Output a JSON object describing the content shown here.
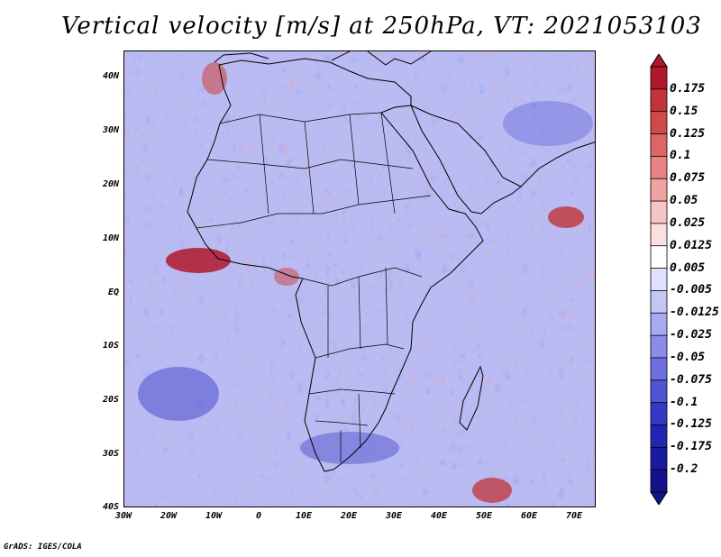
{
  "title": "Vertical velocity [m/s] at 250hPa, VT: 2021053103",
  "credit": "GrADS: IGES/COLA",
  "map": {
    "region": "Africa and surrounding oceans",
    "lon_range": [
      -30,
      75
    ],
    "lat_range": [
      -40,
      45
    ],
    "lat_labels": [
      "40N",
      "30N",
      "20N",
      "10N",
      "EQ",
      "10S",
      "20S",
      "30S",
      "40S"
    ],
    "lon_labels": [
      "30W",
      "20W",
      "10W",
      "0",
      "10E",
      "20E",
      "30E",
      "40E",
      "50E",
      "60E",
      "70E"
    ]
  },
  "colorbar": {
    "labels": [
      "0.175",
      "0.15",
      "0.125",
      "0.1",
      "0.075",
      "0.05",
      "0.025",
      "0.0125",
      "0.005",
      "-0.005",
      "-0.0125",
      "-0.025",
      "-0.05",
      "-0.075",
      "-0.1",
      "-0.125",
      "-0.175",
      "-0.2"
    ],
    "colors": [
      "#b2182b",
      "#c23438",
      "#d04a4a",
      "#dc6565",
      "#e78383",
      "#f0a3a3",
      "#f6c4c4",
      "#fbe0e0",
      "#ffffff",
      "#dfe0fb",
      "#c4c6f6",
      "#a7aaf0",
      "#8a8de8",
      "#6e70df",
      "#5154d4",
      "#3638c6",
      "#2224b4",
      "#1a1aa0",
      "#12128c"
    ]
  }
}
